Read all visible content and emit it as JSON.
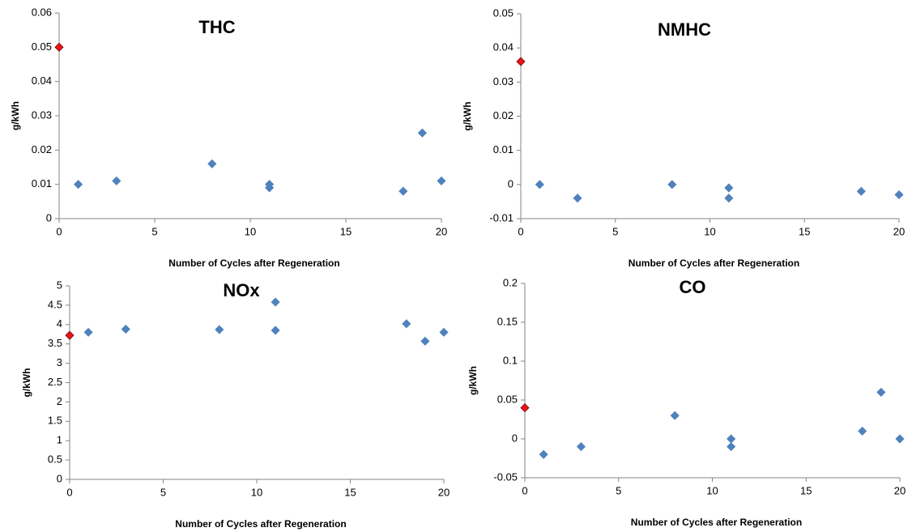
{
  "chart_data": [
    {
      "type": "scatter",
      "title": "THC",
      "x_label": "Number of Cycles after Regeneration",
      "y_label": "g/kWh",
      "xlim": [
        0,
        20
      ],
      "xticks": [
        0,
        5,
        10,
        15,
        20
      ],
      "ylim": [
        0,
        0.06
      ],
      "yticks": [
        0,
        0.01,
        0.02,
        0.03,
        0.04,
        0.05,
        0.06
      ],
      "series": [
        {
          "color": "#4f81bd",
          "x": [
            1,
            3,
            8,
            11,
            11,
            18,
            19,
            20
          ],
          "values": [
            0.01,
            0.011,
            0.016,
            0.01,
            0.009,
            0.008,
            0.025,
            0.011
          ]
        },
        {
          "color": "#e8141c",
          "x": [
            0
          ],
          "values": [
            0.05
          ]
        }
      ]
    },
    {
      "type": "scatter",
      "title": "NMHC",
      "x_label": "Number of Cycles after Regeneration",
      "y_label": "g/kWh",
      "xlim": [
        0,
        20
      ],
      "xticks": [
        0,
        5,
        10,
        15,
        20
      ],
      "ylim": [
        -0.01,
        0.05
      ],
      "yticks": [
        -0.01,
        0,
        0.01,
        0.02,
        0.03,
        0.04,
        0.05
      ],
      "series": [
        {
          "color": "#4f81bd",
          "x": [
            1,
            3,
            8,
            11,
            11,
            18,
            20
          ],
          "values": [
            0,
            -0.004,
            0,
            -0.001,
            -0.004,
            -0.002,
            -0.003
          ]
        },
        {
          "color": "#e8141c",
          "x": [
            0
          ],
          "values": [
            0.036
          ]
        }
      ]
    },
    {
      "type": "scatter",
      "title": "NOx",
      "x_label": "Number of Cycles after Regeneration",
      "y_label": "g/kWh",
      "xlim": [
        0,
        20
      ],
      "xticks": [
        0,
        5,
        10,
        15,
        20
      ],
      "ylim": [
        0,
        5
      ],
      "yticks": [
        0,
        0.5,
        1,
        1.5,
        2,
        2.5,
        3,
        3.5,
        4,
        4.5,
        5
      ],
      "series": [
        {
          "color": "#4f81bd",
          "x": [
            1,
            3,
            8,
            11,
            11,
            18,
            19,
            20
          ],
          "values": [
            3.8,
            3.88,
            3.87,
            4.58,
            3.85,
            4.02,
            3.57,
            3.8
          ]
        },
        {
          "color": "#e8141c",
          "x": [
            0
          ],
          "values": [
            3.72
          ]
        }
      ]
    },
    {
      "type": "scatter",
      "title": "CO",
      "x_label": "Number of Cycles after Regeneration",
      "y_label": "g/kWh",
      "xlim": [
        0,
        20
      ],
      "xticks": [
        0,
        5,
        10,
        15,
        20
      ],
      "ylim": [
        -0.05,
        0.2
      ],
      "yticks": [
        -0.05,
        0,
        0.05,
        0.1,
        0.15,
        0.2
      ],
      "series": [
        {
          "color": "#4f81bd",
          "x": [
            1,
            3,
            8,
            11,
            11,
            18,
            19,
            20
          ],
          "values": [
            -0.02,
            -0.01,
            0.03,
            0,
            -0.01,
            0.01,
            0.06,
            0
          ]
        },
        {
          "color": "#e8141c",
          "x": [
            0
          ],
          "values": [
            0.04
          ]
        }
      ]
    }
  ]
}
